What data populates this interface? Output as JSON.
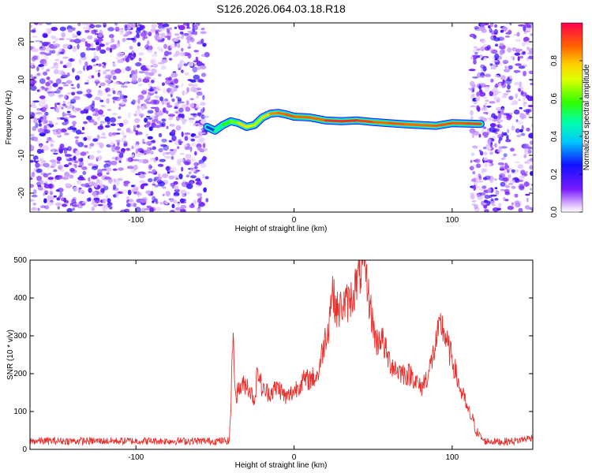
{
  "chart_data": [
    {
      "type": "heatmap",
      "title": "S126.2026.064.03.18.R18",
      "xlabel": "Height of straight line (km)",
      "ylabel": "Frequency (Hz)",
      "xlim": [
        -167,
        151
      ],
      "ylim": [
        -25,
        25
      ],
      "xticks": [
        -100,
        0,
        100
      ],
      "yticks": [
        -20,
        -10,
        0,
        10,
        20
      ],
      "colorbar": {
        "label": "Normalized spectral amplitude",
        "range": [
          0,
          1
        ],
        "ticks": [
          "0.0",
          "0.2",
          "0.4",
          "0.6",
          "0.8"
        ]
      },
      "noise_regions": [
        [
          -167,
          -55
        ],
        [
          112,
          151
        ]
      ],
      "signal_track": {
        "x": [
          -55,
          -50,
          -45,
          -40,
          -35,
          -30,
          -25,
          -20,
          -15,
          -10,
          -5,
          0,
          10,
          20,
          30,
          40,
          50,
          60,
          70,
          80,
          90,
          100,
          110,
          118
        ],
        "y": [
          -2.5,
          -3.5,
          -2.0,
          -1.0,
          -1.5,
          -2.5,
          -2.0,
          0.0,
          1.0,
          1.2,
          0.8,
          0.2,
          0.0,
          -0.8,
          -1.0,
          -0.8,
          -1.2,
          -1.5,
          -1.8,
          -2.0,
          -2.2,
          -1.5,
          -1.6,
          -1.7
        ],
        "amplitude": [
          0.2,
          0.35,
          0.6,
          0.55,
          0.7,
          0.85,
          0.6,
          0.75,
          0.8,
          0.9,
          0.85,
          0.95,
          0.8,
          0.95,
          0.95,
          0.95,
          0.9,
          0.85,
          0.95,
          0.8,
          0.95,
          0.85,
          0.95,
          0.9
        ]
      }
    },
    {
      "type": "line",
      "xlabel": "Height of straight line (km)",
      "ylabel": "SNR (10 * v/v)",
      "xlim": [
        -167,
        151
      ],
      "ylim": [
        0,
        500
      ],
      "xticks": [
        -100,
        0,
        100
      ],
      "yticks": [
        0,
        100,
        200,
        300,
        400,
        500
      ],
      "series": [
        {
          "name": "SNR",
          "color": "#e8302c",
          "x": [
            -167,
            -120,
            -80,
            -41,
            -40,
            -39,
            -38,
            -37,
            -35,
            -30,
            -25,
            -23,
            -20,
            -15,
            -10,
            -5,
            0,
            5,
            10,
            15,
            18,
            20,
            22,
            24,
            25,
            28,
            30,
            35,
            38,
            42,
            45,
            46,
            48,
            50,
            52,
            55,
            58,
            60,
            65,
            70,
            75,
            80,
            85,
            88,
            90,
            93,
            95,
            98,
            100,
            103,
            105,
            108,
            110,
            113,
            115,
            120,
            130,
            140,
            151
          ],
          "values": [
            22,
            22,
            22,
            22,
            100,
            290,
            250,
            140,
            160,
            175,
            130,
            210,
            155,
            150,
            165,
            135,
            155,
            180,
            185,
            195,
            260,
            300,
            330,
            430,
            400,
            360,
            380,
            390,
            420,
            470,
            480,
            440,
            380,
            330,
            280,
            300,
            260,
            235,
            210,
            200,
            195,
            160,
            200,
            250,
            285,
            330,
            310,
            260,
            240,
            190,
            160,
            130,
            100,
            80,
            50,
            22,
            20,
            22,
            32
          ]
        }
      ]
    }
  ]
}
